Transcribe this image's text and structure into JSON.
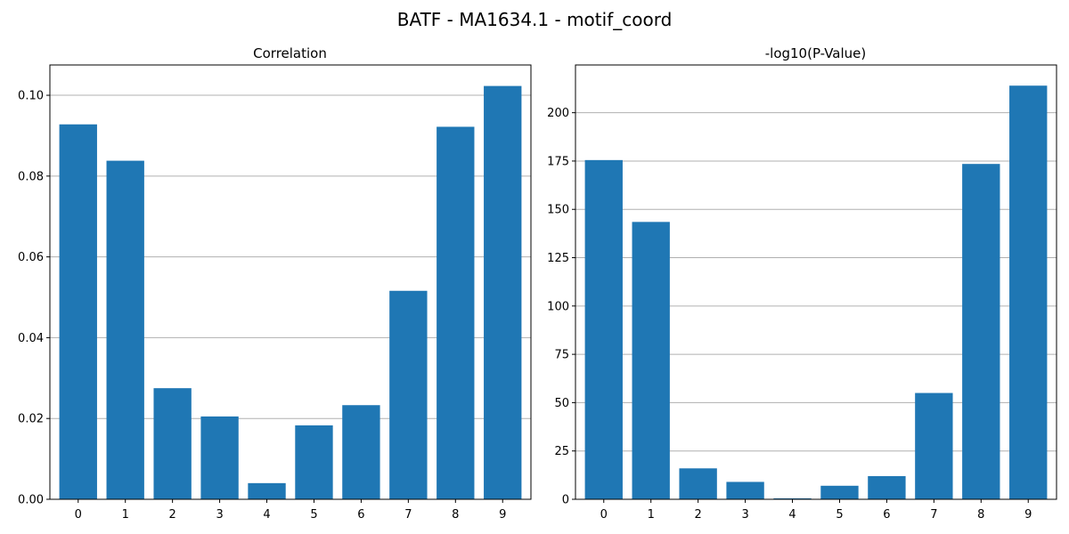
{
  "suptitle": "BATF - MA1634.1 - motif_coord",
  "colors": {
    "bar": "#1f77b4",
    "grid": "#b0b0b0"
  },
  "chart_data": [
    {
      "type": "bar",
      "title": "Correlation",
      "xlabel": "",
      "ylabel": "",
      "categories": [
        "0",
        "1",
        "2",
        "3",
        "4",
        "5",
        "6",
        "7",
        "8",
        "9"
      ],
      "values": [
        0.0928,
        0.0838,
        0.0275,
        0.0205,
        0.004,
        0.0183,
        0.0233,
        0.0516,
        0.0922,
        0.1023
      ],
      "ylim": [
        0,
        0.1075
      ],
      "yticks": [
        0.0,
        0.02,
        0.04,
        0.06,
        0.08,
        0.1
      ],
      "ytick_labels": [
        "0.00",
        "0.02",
        "0.04",
        "0.06",
        "0.08",
        "0.10"
      ],
      "grid": "y"
    },
    {
      "type": "bar",
      "title": "-log10(P-Value)",
      "xlabel": "",
      "ylabel": "",
      "categories": [
        "0",
        "1",
        "2",
        "3",
        "4",
        "5",
        "6",
        "7",
        "8",
        "9"
      ],
      "values": [
        175.5,
        143.5,
        16.0,
        9.0,
        0.5,
        7.0,
        12.0,
        55.0,
        173.5,
        214.0
      ],
      "ylim": [
        0,
        224.7
      ],
      "yticks": [
        0,
        25,
        50,
        75,
        100,
        125,
        150,
        175,
        200
      ],
      "ytick_labels": [
        "0",
        "25",
        "50",
        "75",
        "100",
        "125",
        "150",
        "175",
        "200"
      ],
      "grid": "y"
    }
  ]
}
